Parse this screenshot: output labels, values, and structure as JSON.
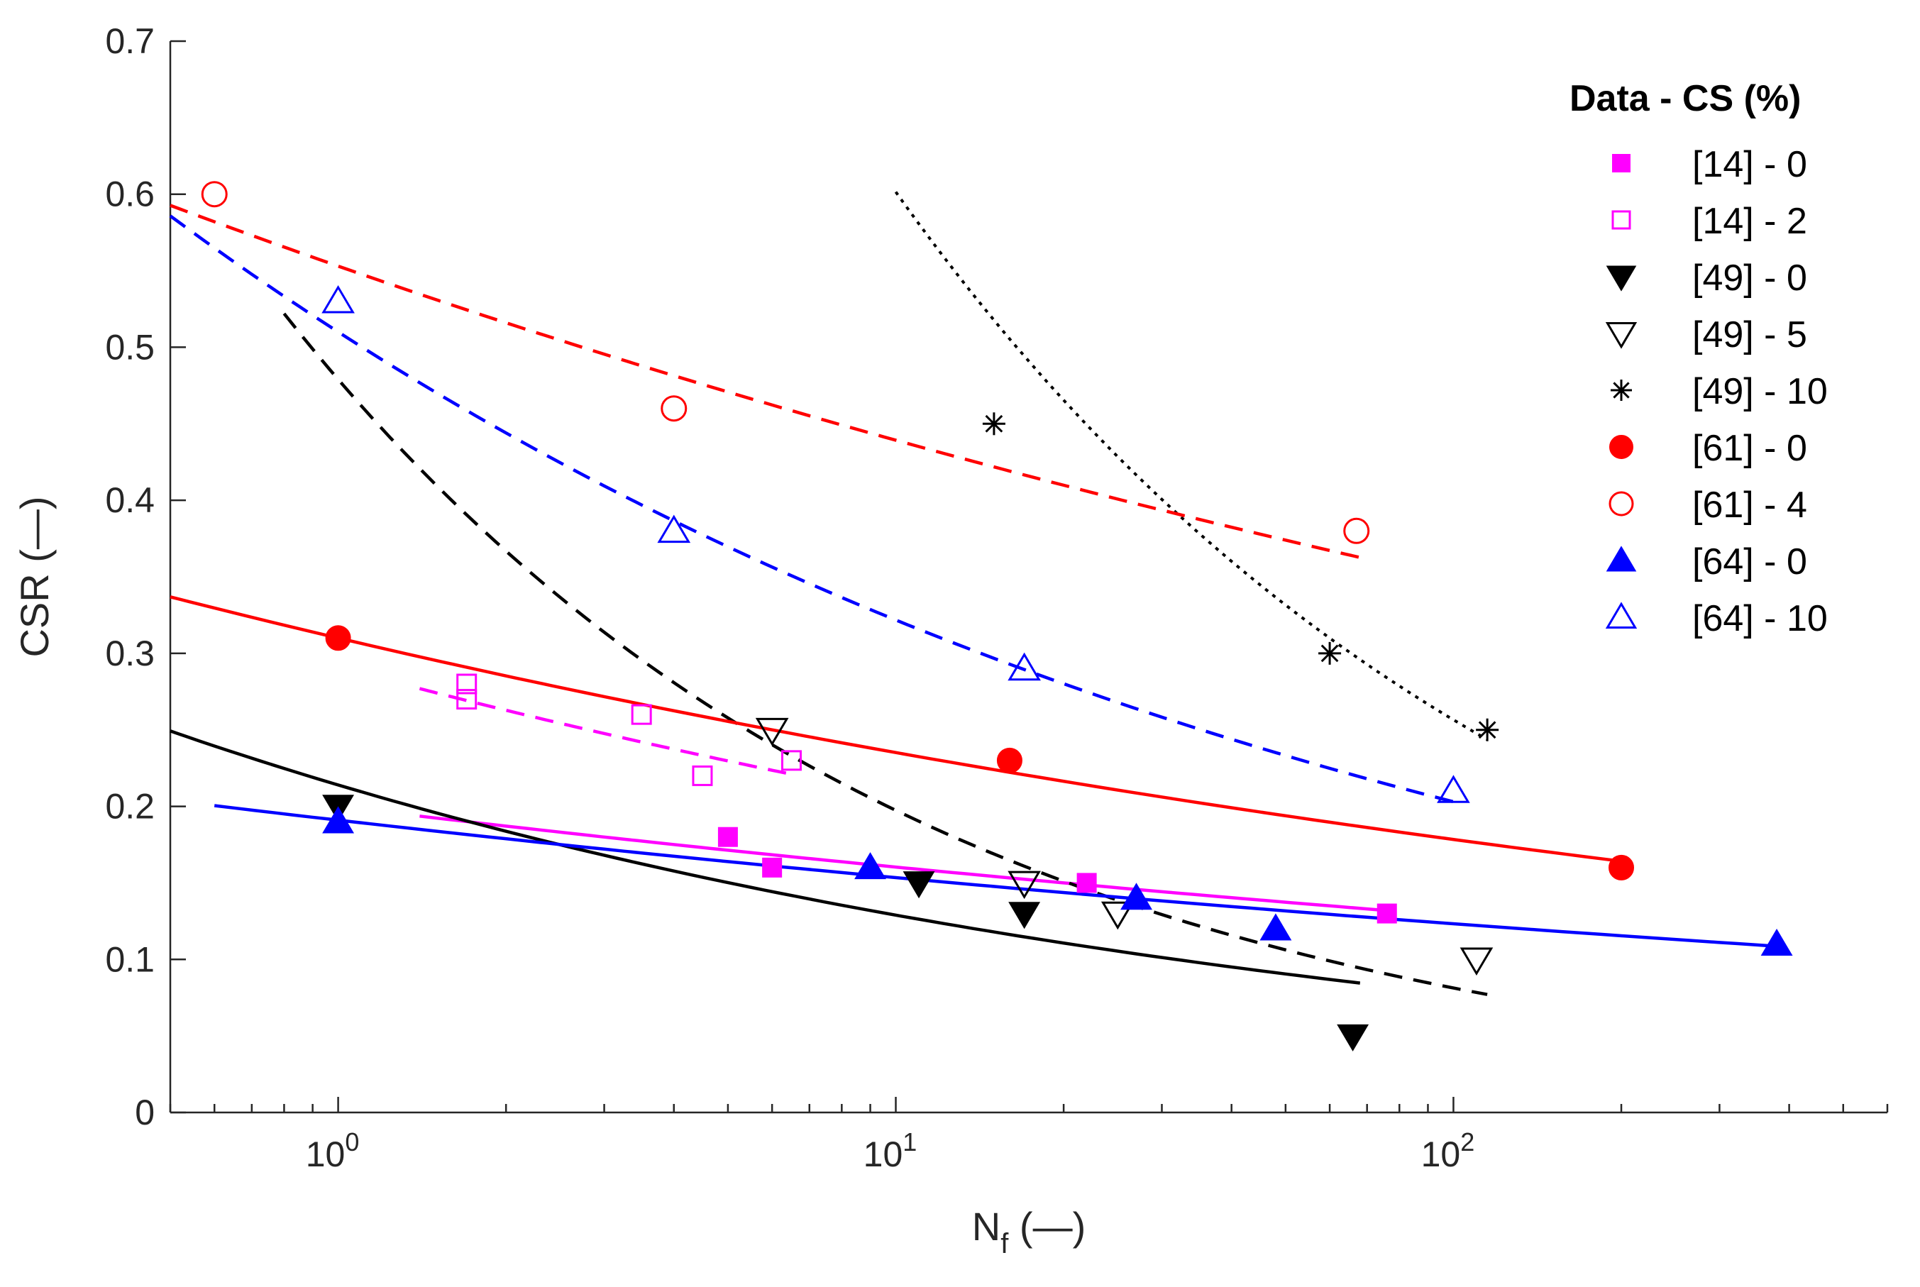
{
  "chart_data": {
    "type": "scatter",
    "x_scale": "log",
    "xlim": [
      0.5,
      600
    ],
    "ylim": [
      0,
      0.7
    ],
    "xlabel": {
      "base": "N",
      "subscript": "f",
      "units": " (—)"
    },
    "ylabel": "CSR (—)",
    "x_ticks": [
      {
        "value": 1,
        "base": "10",
        "exp": "0"
      },
      {
        "value": 10,
        "base": "10",
        "exp": "1"
      },
      {
        "value": 100,
        "base": "10",
        "exp": "2"
      }
    ],
    "y_ticks": [
      {
        "value": 0,
        "label": "0"
      },
      {
        "value": 0.1,
        "label": "0.1"
      },
      {
        "value": 0.2,
        "label": "0.2"
      },
      {
        "value": 0.3,
        "label": "0.3"
      },
      {
        "value": 0.4,
        "label": "0.4"
      },
      {
        "value": 0.5,
        "label": "0.5"
      },
      {
        "value": 0.6,
        "label": "0.6"
      },
      {
        "value": 0.7,
        "label": "0.7"
      }
    ],
    "legend": {
      "title": "Data - CS (%)",
      "position": "top-right"
    },
    "series": [
      {
        "name": "[14] - 0",
        "marker": "square",
        "filled": true,
        "color": "#ff00ff",
        "points": [
          [
            5,
            0.18
          ],
          [
            6,
            0.16
          ],
          [
            22,
            0.15
          ],
          [
            76,
            0.13
          ]
        ],
        "fit": {
          "style": "solid",
          "a": 0.2,
          "b": -0.096,
          "x_range": [
            1.4,
            76
          ]
        }
      },
      {
        "name": "[14] - 2",
        "marker": "square",
        "filled": false,
        "color": "#ff00ff",
        "points": [
          [
            1.7,
            0.28
          ],
          [
            1.7,
            0.27
          ],
          [
            3.5,
            0.26
          ],
          [
            4.5,
            0.22
          ],
          [
            6.5,
            0.23
          ]
        ],
        "fit": {
          "style": "dashed",
          "a": 0.291,
          "b": -0.147,
          "x_range": [
            1.4,
            6.5
          ]
        }
      },
      {
        "name": "[49] - 0",
        "marker": "triangle-down",
        "filled": true,
        "color": "#000000",
        "points": [
          [
            1,
            0.2
          ],
          [
            11,
            0.15
          ],
          [
            17,
            0.13
          ],
          [
            66,
            0.05
          ]
        ],
        "fit": {
          "style": "solid",
          "a": 0.214,
          "b": -0.22,
          "x_range": [
            0.5,
            68
          ]
        }
      },
      {
        "name": "[49] - 5",
        "marker": "triangle-down",
        "filled": false,
        "color": "#000000",
        "points": [
          [
            6,
            0.25
          ],
          [
            17,
            0.15
          ],
          [
            25,
            0.13
          ],
          [
            110,
            0.1
          ]
        ],
        "fit": {
          "style": "dashed",
          "a": 0.479,
          "b": -0.385,
          "x_range": [
            0.8,
            115
          ]
        }
      },
      {
        "name": "[49] - 10",
        "marker": "asterisk",
        "filled": false,
        "color": "#000000",
        "points": [
          [
            15,
            0.45
          ],
          [
            60,
            0.3
          ],
          [
            115,
            0.25
          ]
        ],
        "fit": {
          "style": "dotted",
          "a": 1.41,
          "b": -0.37,
          "x_range": [
            10,
            115
          ]
        }
      },
      {
        "name": "[61] - 0",
        "marker": "circle",
        "filled": true,
        "color": "#ff0000",
        "points": [
          [
            1,
            0.31
          ],
          [
            16,
            0.23
          ],
          [
            200,
            0.16
          ]
        ],
        "fit": {
          "style": "solid",
          "a": 0.31,
          "b": -0.12,
          "x_range": [
            0.5,
            200
          ]
        }
      },
      {
        "name": "[61] - 4",
        "marker": "circle",
        "filled": false,
        "color": "#ff0000",
        "points": [
          [
            0.6,
            0.6
          ],
          [
            4,
            0.46
          ],
          [
            67,
            0.38
          ]
        ],
        "fit": {
          "style": "dashed",
          "a": 0.553,
          "b": -0.1,
          "x_range": [
            0.5,
            68
          ]
        }
      },
      {
        "name": "[64] - 0",
        "marker": "triangle-up",
        "filled": true,
        "color": "#0000ff",
        "points": [
          [
            1,
            0.19
          ],
          [
            9,
            0.16
          ],
          [
            27,
            0.14
          ],
          [
            48,
            0.12
          ],
          [
            380,
            0.11
          ]
        ],
        "fit": {
          "style": "solid",
          "a": 0.191,
          "b": -0.095,
          "x_range": [
            0.6,
            380
          ]
        }
      },
      {
        "name": "[64] - 10",
        "marker": "triangle-up",
        "filled": false,
        "color": "#0000ff",
        "points": [
          [
            1,
            0.53
          ],
          [
            4,
            0.38
          ],
          [
            17,
            0.29
          ],
          [
            100,
            0.21
          ]
        ],
        "fit": {
          "style": "dashed",
          "a": 0.51,
          "b": -0.2,
          "x_range": [
            0.5,
            100
          ]
        }
      }
    ]
  }
}
